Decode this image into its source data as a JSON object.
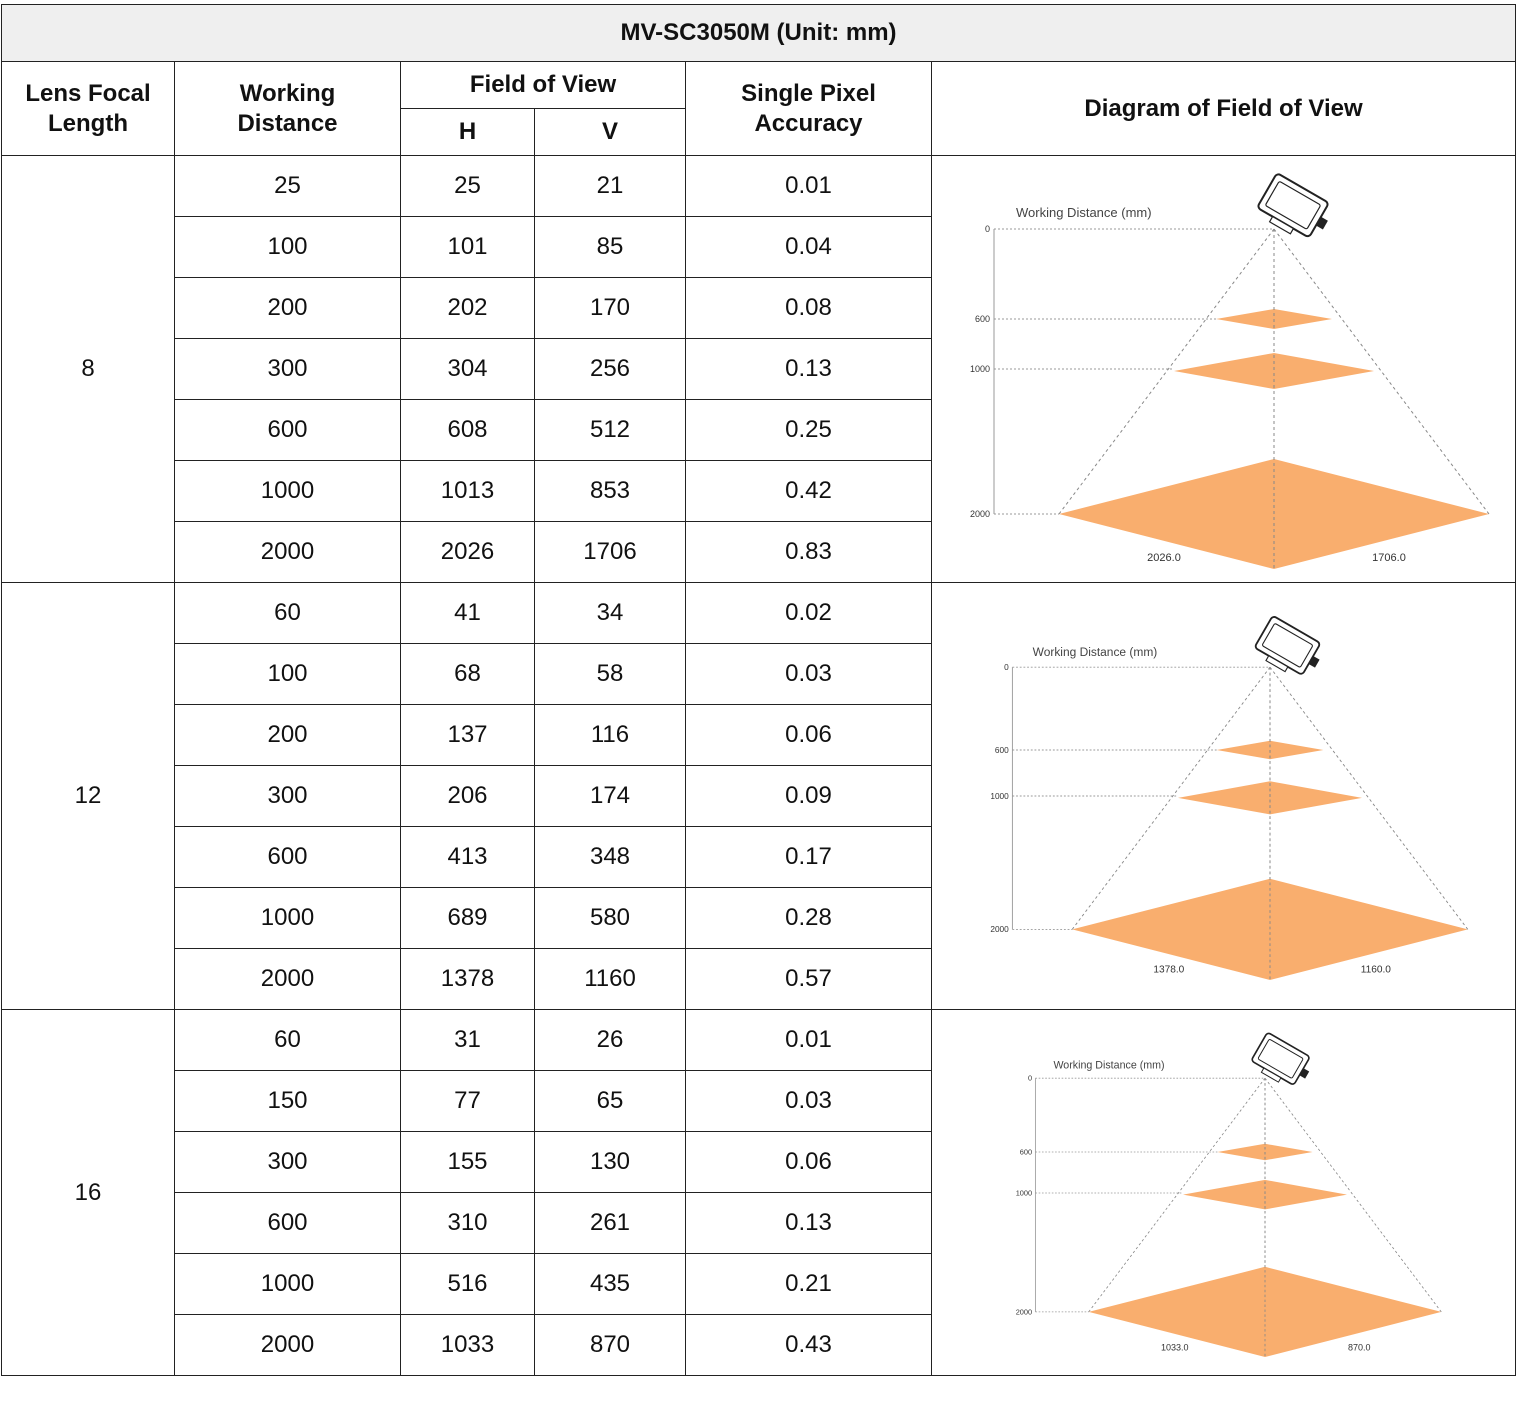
{
  "title": "MV-SC3050M (Unit: mm)",
  "headers": {
    "lens_focal_length": "Lens Focal Length",
    "working_distance": "Working Distance",
    "field_of_view": "Field of View",
    "h": "H",
    "v": "V",
    "single_pixel_accuracy": "Single Pixel Accuracy",
    "diagram": "Diagram of Field of View"
  },
  "colors": {
    "plane": "#f9ae6e",
    "grid": "#222222",
    "header_bg": "#efefef"
  },
  "groups": [
    {
      "focal": "8",
      "rows": [
        {
          "wd": "25",
          "h": "25",
          "v": "21",
          "acc": "0.01"
        },
        {
          "wd": "100",
          "h": "101",
          "v": "85",
          "acc": "0.04"
        },
        {
          "wd": "200",
          "h": "202",
          "v": "170",
          "acc": "0.08"
        },
        {
          "wd": "300",
          "h": "304",
          "v": "256",
          "acc": "0.13"
        },
        {
          "wd": "600",
          "h": "608",
          "v": "512",
          "acc": "0.25"
        },
        {
          "wd": "1000",
          "h": "1013",
          "v": "853",
          "acc": "0.42"
        },
        {
          "wd": "2000",
          "h": "2026",
          "v": "1706",
          "acc": "0.83"
        }
      ],
      "diagram": {
        "axis_label": "Working Distance (mm)",
        "ticks": [
          "0",
          "600",
          "1000",
          "2000"
        ],
        "dim_h": "2026.0",
        "dim_v": "1706.0"
      }
    },
    {
      "focal": "12",
      "rows": [
        {
          "wd": "60",
          "h": "41",
          "v": "34",
          "acc": "0.02"
        },
        {
          "wd": "100",
          "h": "68",
          "v": "58",
          "acc": "0.03"
        },
        {
          "wd": "200",
          "h": "137",
          "v": "116",
          "acc": "0.06"
        },
        {
          "wd": "300",
          "h": "206",
          "v": "174",
          "acc": "0.09"
        },
        {
          "wd": "600",
          "h": "413",
          "v": "348",
          "acc": "0.17"
        },
        {
          "wd": "1000",
          "h": "689",
          "v": "580",
          "acc": "0.28"
        },
        {
          "wd": "2000",
          "h": "1378",
          "v": "1160",
          "acc": "0.57"
        }
      ],
      "diagram": {
        "axis_label": "Working Distance (mm)",
        "ticks": [
          "0",
          "600",
          "1000",
          "2000"
        ],
        "dim_h": "1378.0",
        "dim_v": "1160.0"
      }
    },
    {
      "focal": "16",
      "rows": [
        {
          "wd": "60",
          "h": "31",
          "v": "26",
          "acc": "0.01"
        },
        {
          "wd": "150",
          "h": "77",
          "v": "65",
          "acc": "0.03"
        },
        {
          "wd": "300",
          "h": "155",
          "v": "130",
          "acc": "0.06"
        },
        {
          "wd": "600",
          "h": "310",
          "v": "261",
          "acc": "0.13"
        },
        {
          "wd": "1000",
          "h": "516",
          "v": "435",
          "acc": "0.21"
        },
        {
          "wd": "2000",
          "h": "1033",
          "v": "870",
          "acc": "0.43"
        }
      ],
      "diagram": {
        "axis_label": "Working Distance (mm)",
        "ticks": [
          "0",
          "600",
          "1000",
          "2000"
        ],
        "dim_h": "1033.0",
        "dim_v": "870.0"
      }
    }
  ]
}
